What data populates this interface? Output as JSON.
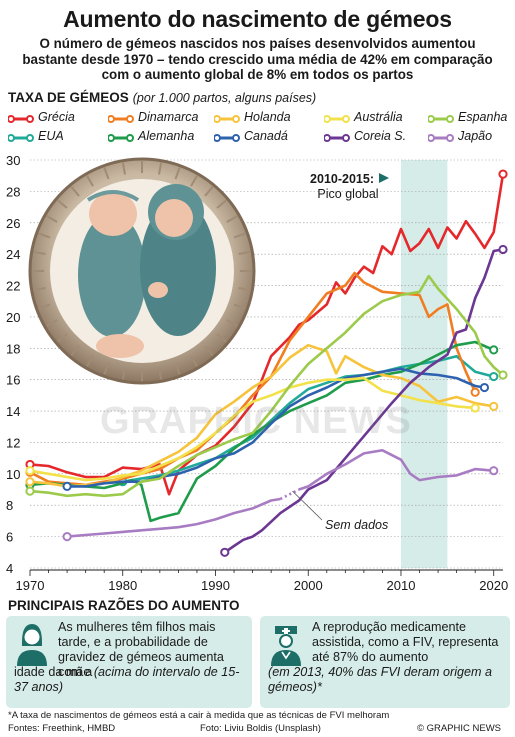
{
  "title": "Aumento do nascimento de gémeos",
  "subtitle": "O número de gémeos nascidos nos países desenvolvidos aumentou bastante desde 1970 – tendo crescido uma média de 42% em comparação com o aumento global de 8% em todos os partos",
  "section_title": "TAXA DE GÉMEOS",
  "section_note": "(por 1.000 partos, alguns países)",
  "peak_annotation": {
    "label": "2010-2015:",
    "sub": "Pico global"
  },
  "no_data_label": "Sem dados",
  "watermark": "GRAPHIC NEWS",
  "chart_data": {
    "type": "line",
    "xlim": [
      1970,
      2021
    ],
    "ylim": [
      4,
      30
    ],
    "x_ticks": [
      "1970",
      "1980",
      "1990",
      "2000",
      "2010",
      "2020"
    ],
    "y_ticks": [
      "4",
      "6",
      "8",
      "10",
      "12",
      "14",
      "16",
      "18",
      "20",
      "22",
      "24",
      "26",
      "28",
      "30"
    ],
    "highlight_band": [
      2010,
      2015
    ],
    "series": [
      {
        "name": "Grécia",
        "color": "#e4282c",
        "points": [
          [
            1970,
            10.6
          ],
          [
            1972,
            10.5
          ],
          [
            1974,
            10.1
          ],
          [
            1976,
            9.8
          ],
          [
            1978,
            9.8
          ],
          [
            1980,
            10.4
          ],
          [
            1982,
            10.3
          ],
          [
            1984,
            10.6
          ],
          [
            1985,
            8.7
          ],
          [
            1986,
            10.2
          ],
          [
            1988,
            11.2
          ],
          [
            1990,
            11.8
          ],
          [
            1992,
            13
          ],
          [
            1994,
            14.5
          ],
          [
            1995,
            16
          ],
          [
            1996,
            17.5
          ],
          [
            1998,
            18.7
          ],
          [
            1999,
            19.5
          ],
          [
            2000,
            19.8
          ],
          [
            2002,
            20.8
          ],
          [
            2003,
            22.2
          ],
          [
            2004,
            21.5
          ],
          [
            2005,
            22.5
          ],
          [
            2006,
            23.2
          ],
          [
            2007,
            22.8
          ],
          [
            2008,
            24.5
          ],
          [
            2009,
            24
          ],
          [
            2010,
            25.6
          ],
          [
            2011,
            24.2
          ],
          [
            2012,
            24.7
          ],
          [
            2013,
            25.6
          ],
          [
            2014,
            24.4
          ],
          [
            2015,
            25.7
          ],
          [
            2016,
            25
          ],
          [
            2017,
            26.1
          ],
          [
            2018,
            25.3
          ],
          [
            2019,
            24.4
          ],
          [
            2020,
            25.4
          ],
          [
            2021,
            29.1
          ]
        ]
      },
      {
        "name": "EUA",
        "color": "#21a999",
        "points": [
          [
            1980,
            9.5
          ],
          [
            1984,
            9.9
          ],
          [
            1986,
            10.2
          ],
          [
            1988,
            10.6
          ],
          [
            1990,
            11
          ],
          [
            1992,
            11.7
          ],
          [
            1994,
            12.3
          ],
          [
            1996,
            13.4
          ],
          [
            1998,
            14.5
          ],
          [
            2000,
            15.4
          ],
          [
            2002,
            15.8
          ],
          [
            2004,
            16.2
          ],
          [
            2006,
            16.3
          ],
          [
            2008,
            16.5
          ],
          [
            2010,
            16.8
          ],
          [
            2012,
            17
          ],
          [
            2014,
            17.2
          ],
          [
            2016,
            17.5
          ],
          [
            2018,
            16.5
          ],
          [
            2020,
            16.2
          ]
        ]
      },
      {
        "name": "Dinamarca",
        "color": "#f07d21",
        "points": [
          [
            1970,
            10.1
          ],
          [
            1972,
            9.5
          ],
          [
            1974,
            9.4
          ],
          [
            1976,
            9.3
          ],
          [
            1978,
            9.5
          ],
          [
            1980,
            9.7
          ],
          [
            1982,
            10
          ],
          [
            1984,
            10.3
          ],
          [
            1986,
            11
          ],
          [
            1988,
            11.5
          ],
          [
            1990,
            12.6
          ],
          [
            1992,
            13.6
          ],
          [
            1994,
            15
          ],
          [
            1996,
            16.2
          ],
          [
            1998,
            18.5
          ],
          [
            2000,
            20
          ],
          [
            2002,
            21.5
          ],
          [
            2004,
            22
          ],
          [
            2005,
            22.8
          ],
          [
            2006,
            22.2
          ],
          [
            2008,
            21.6
          ],
          [
            2010,
            21.5
          ],
          [
            2012,
            21.4
          ],
          [
            2013,
            20
          ],
          [
            2014,
            20.5
          ],
          [
            2015,
            20.8
          ],
          [
            2016,
            18
          ],
          [
            2017,
            16.5
          ],
          [
            2018,
            15.2
          ]
        ]
      },
      {
        "name": "Alemanha",
        "color": "#1e9b4b",
        "points": [
          [
            1970,
            9.3
          ],
          [
            1972,
            9.4
          ],
          [
            1974,
            9.3
          ],
          [
            1976,
            9.2
          ],
          [
            1978,
            9.1
          ],
          [
            1980,
            9.4
          ],
          [
            1981,
            9.6
          ],
          [
            1982,
            9.3
          ],
          [
            1983,
            7
          ],
          [
            1984,
            7.2
          ],
          [
            1986,
            7.5
          ],
          [
            1988,
            9.7
          ],
          [
            1990,
            10.5
          ],
          [
            1992,
            11.6
          ],
          [
            1994,
            12.5
          ],
          [
            1996,
            13.3
          ],
          [
            1998,
            14
          ],
          [
            2000,
            14.5
          ],
          [
            2002,
            15
          ],
          [
            2004,
            15.8
          ],
          [
            2006,
            16
          ],
          [
            2008,
            16.3
          ],
          [
            2010,
            16.5
          ],
          [
            2012,
            17
          ],
          [
            2014,
            17.6
          ],
          [
            2016,
            18.2
          ],
          [
            2018,
            18.4
          ],
          [
            2020,
            17.9
          ]
        ]
      },
      {
        "name": "Holanda",
        "color": "#f7c33b",
        "points": [
          [
            1970,
            9.5
          ],
          [
            1972,
            9.4
          ],
          [
            1974,
            9.2
          ],
          [
            1976,
            9.3
          ],
          [
            1978,
            9.4
          ],
          [
            1980,
            9.8
          ],
          [
            1982,
            10.2
          ],
          [
            1984,
            10.8
          ],
          [
            1986,
            11.4
          ],
          [
            1988,
            12.3
          ],
          [
            1990,
            13.8
          ],
          [
            1992,
            14.6
          ],
          [
            1994,
            15.5
          ],
          [
            1996,
            16.2
          ],
          [
            1998,
            17.4
          ],
          [
            2000,
            18.2
          ],
          [
            2002,
            17.8
          ],
          [
            2003,
            16.4
          ],
          [
            2004,
            17.5
          ],
          [
            2006,
            16.8
          ],
          [
            2008,
            16.3
          ],
          [
            2010,
            16.1
          ],
          [
            2012,
            15.6
          ],
          [
            2014,
            14.6
          ],
          [
            2016,
            14.9
          ],
          [
            2018,
            14.5
          ],
          [
            2020,
            14.3
          ]
        ]
      },
      {
        "name": "Canadá",
        "color": "#2e61ae",
        "points": [
          [
            1974,
            9.2
          ],
          [
            1976,
            9.2
          ],
          [
            1978,
            9.4
          ],
          [
            1980,
            9.5
          ],
          [
            1982,
            9.5
          ],
          [
            1984,
            9.8
          ],
          [
            1986,
            10
          ],
          [
            1988,
            10.4
          ],
          [
            1990,
            11
          ],
          [
            1992,
            11.3
          ],
          [
            1994,
            12
          ],
          [
            1996,
            13.2
          ],
          [
            1998,
            14.3
          ],
          [
            2000,
            15
          ],
          [
            2002,
            15.5
          ],
          [
            2004,
            16.1
          ],
          [
            2006,
            16.3
          ],
          [
            2008,
            16.5
          ],
          [
            2010,
            16.7
          ],
          [
            2012,
            16.4
          ],
          [
            2014,
            16.3
          ],
          [
            2016,
            16.1
          ],
          [
            2018,
            15.6
          ],
          [
            2019,
            15.5
          ]
        ]
      },
      {
        "name": "Austrália",
        "color": "#f2e14a",
        "points": [
          [
            1970,
            10.2
          ],
          [
            1972,
            10
          ],
          [
            1974,
            9.8
          ],
          [
            1976,
            9.6
          ],
          [
            1978,
            9.7
          ],
          [
            1980,
            9.9
          ],
          [
            1982,
            10
          ],
          [
            1984,
            10.5
          ],
          [
            1986,
            11
          ],
          [
            1988,
            11.7
          ],
          [
            1990,
            12.6
          ],
          [
            1992,
            13.7
          ],
          [
            1994,
            14.6
          ],
          [
            1996,
            15
          ],
          [
            1998,
            15.5
          ],
          [
            2000,
            15.8
          ],
          [
            2002,
            16
          ],
          [
            2004,
            16
          ],
          [
            2006,
            16.1
          ],
          [
            2008,
            15.3
          ],
          [
            2010,
            15
          ],
          [
            2012,
            14.7
          ],
          [
            2014,
            14.5
          ],
          [
            2016,
            14.3
          ],
          [
            2018,
            14.2
          ]
        ]
      },
      {
        "name": "Coreia S.",
        "color": "#6b3793",
        "points": [
          [
            1991,
            5
          ],
          [
            1992,
            5.4
          ],
          [
            1993,
            5.8
          ],
          [
            1994,
            6
          ],
          [
            1995,
            6.4
          ],
          [
            1997,
            7.5
          ],
          [
            1999,
            8.3
          ],
          [
            2000,
            9
          ],
          [
            2002,
            9.6
          ],
          [
            2004,
            11
          ],
          [
            2006,
            12.4
          ],
          [
            2008,
            13.8
          ],
          [
            2009,
            14.5
          ],
          [
            2011,
            15.8
          ],
          [
            2013,
            16.8
          ],
          [
            2015,
            17.6
          ],
          [
            2016,
            19
          ],
          [
            2017,
            19.2
          ],
          [
            2018,
            21.2
          ],
          [
            2019,
            22.5
          ],
          [
            2020,
            24.2
          ],
          [
            2021,
            24.3
          ]
        ]
      },
      {
        "name": "Espanha",
        "color": "#9ccb4c",
        "points": [
          [
            1970,
            8.9
          ],
          [
            1972,
            8.8
          ],
          [
            1974,
            8.6
          ],
          [
            1976,
            8.7
          ],
          [
            1978,
            8.6
          ],
          [
            1980,
            8.7
          ],
          [
            1982,
            9.5
          ],
          [
            1984,
            9.7
          ],
          [
            1986,
            10.5
          ],
          [
            1988,
            11.2
          ],
          [
            1990,
            11.7
          ],
          [
            1992,
            12.2
          ],
          [
            1994,
            12.6
          ],
          [
            1996,
            14
          ],
          [
            1998,
            15.6
          ],
          [
            2000,
            17
          ],
          [
            2002,
            18
          ],
          [
            2004,
            19
          ],
          [
            2006,
            20.2
          ],
          [
            2008,
            21
          ],
          [
            2010,
            21.4
          ],
          [
            2012,
            21.6
          ],
          [
            2013,
            22.6
          ],
          [
            2014,
            21.8
          ],
          [
            2016,
            20.5
          ],
          [
            2018,
            19
          ],
          [
            2019,
            17.5
          ],
          [
            2020,
            16.8
          ],
          [
            2021,
            16.3
          ]
        ]
      },
      {
        "name": "Japão",
        "color": "#a87cc2",
        "points": [
          [
            1974,
            6
          ],
          [
            1976,
            6.1
          ],
          [
            1978,
            6.2
          ],
          [
            1980,
            6.3
          ],
          [
            1982,
            6.4
          ],
          [
            1984,
            6.5
          ],
          [
            1986,
            6.6
          ],
          [
            1988,
            6.8
          ],
          [
            1990,
            7.1
          ],
          [
            1992,
            7.5
          ],
          [
            1994,
            7.8
          ],
          [
            1996,
            8.3
          ],
          [
            1997,
            8.4
          ],
          [
            1998,
            8.8
          ],
          [
            1999,
            9
          ],
          [
            2000,
            9.2
          ],
          [
            2002,
            10
          ],
          [
            2004,
            10.6
          ],
          [
            2006,
            11.3
          ],
          [
            2008,
            11.5
          ],
          [
            2010,
            10.9
          ],
          [
            2011,
            10
          ],
          [
            2012,
            9.6
          ],
          [
            2014,
            9.8
          ],
          [
            2016,
            9.9
          ],
          [
            2018,
            10.3
          ],
          [
            2020,
            10.2
          ]
        ]
      }
    ],
    "gaps": [
      {
        "series": "Japão",
        "from": 1997,
        "to": 1999
      }
    ]
  },
  "reasons": {
    "title": "PRINCIPAIS RAZÕES DO AUMENTO",
    "box1": {
      "icon": "woman-icon",
      "text": "As mulheres têm filhos mais tarde, e a probabilidade de gravidez de gémeos aumenta com a idade da mãe",
      "note": "(acima do intervalo de 15-37 anos)"
    },
    "box2": {
      "icon": "nurse-icon",
      "text": "A reprodução medicamente assistida, como a FIV, representa até 87% do aumento",
      "note": "(em 2013, 40% das FVI deram origem a gémeos)*"
    }
  },
  "footnote": "*A taxa de nascimentos de gémeos está a cair à medida que as técnicas de FVI melhoram",
  "sources": "Fontes: Freethink, HMBD",
  "photo_credit": "Foto: Liviu Boldis (Unsplash)",
  "copyright": "© GRAPHIC NEWS",
  "colors": {
    "band": "#d6ece8",
    "box_bg": "#d6ece8",
    "icon": "#1e6e68"
  }
}
